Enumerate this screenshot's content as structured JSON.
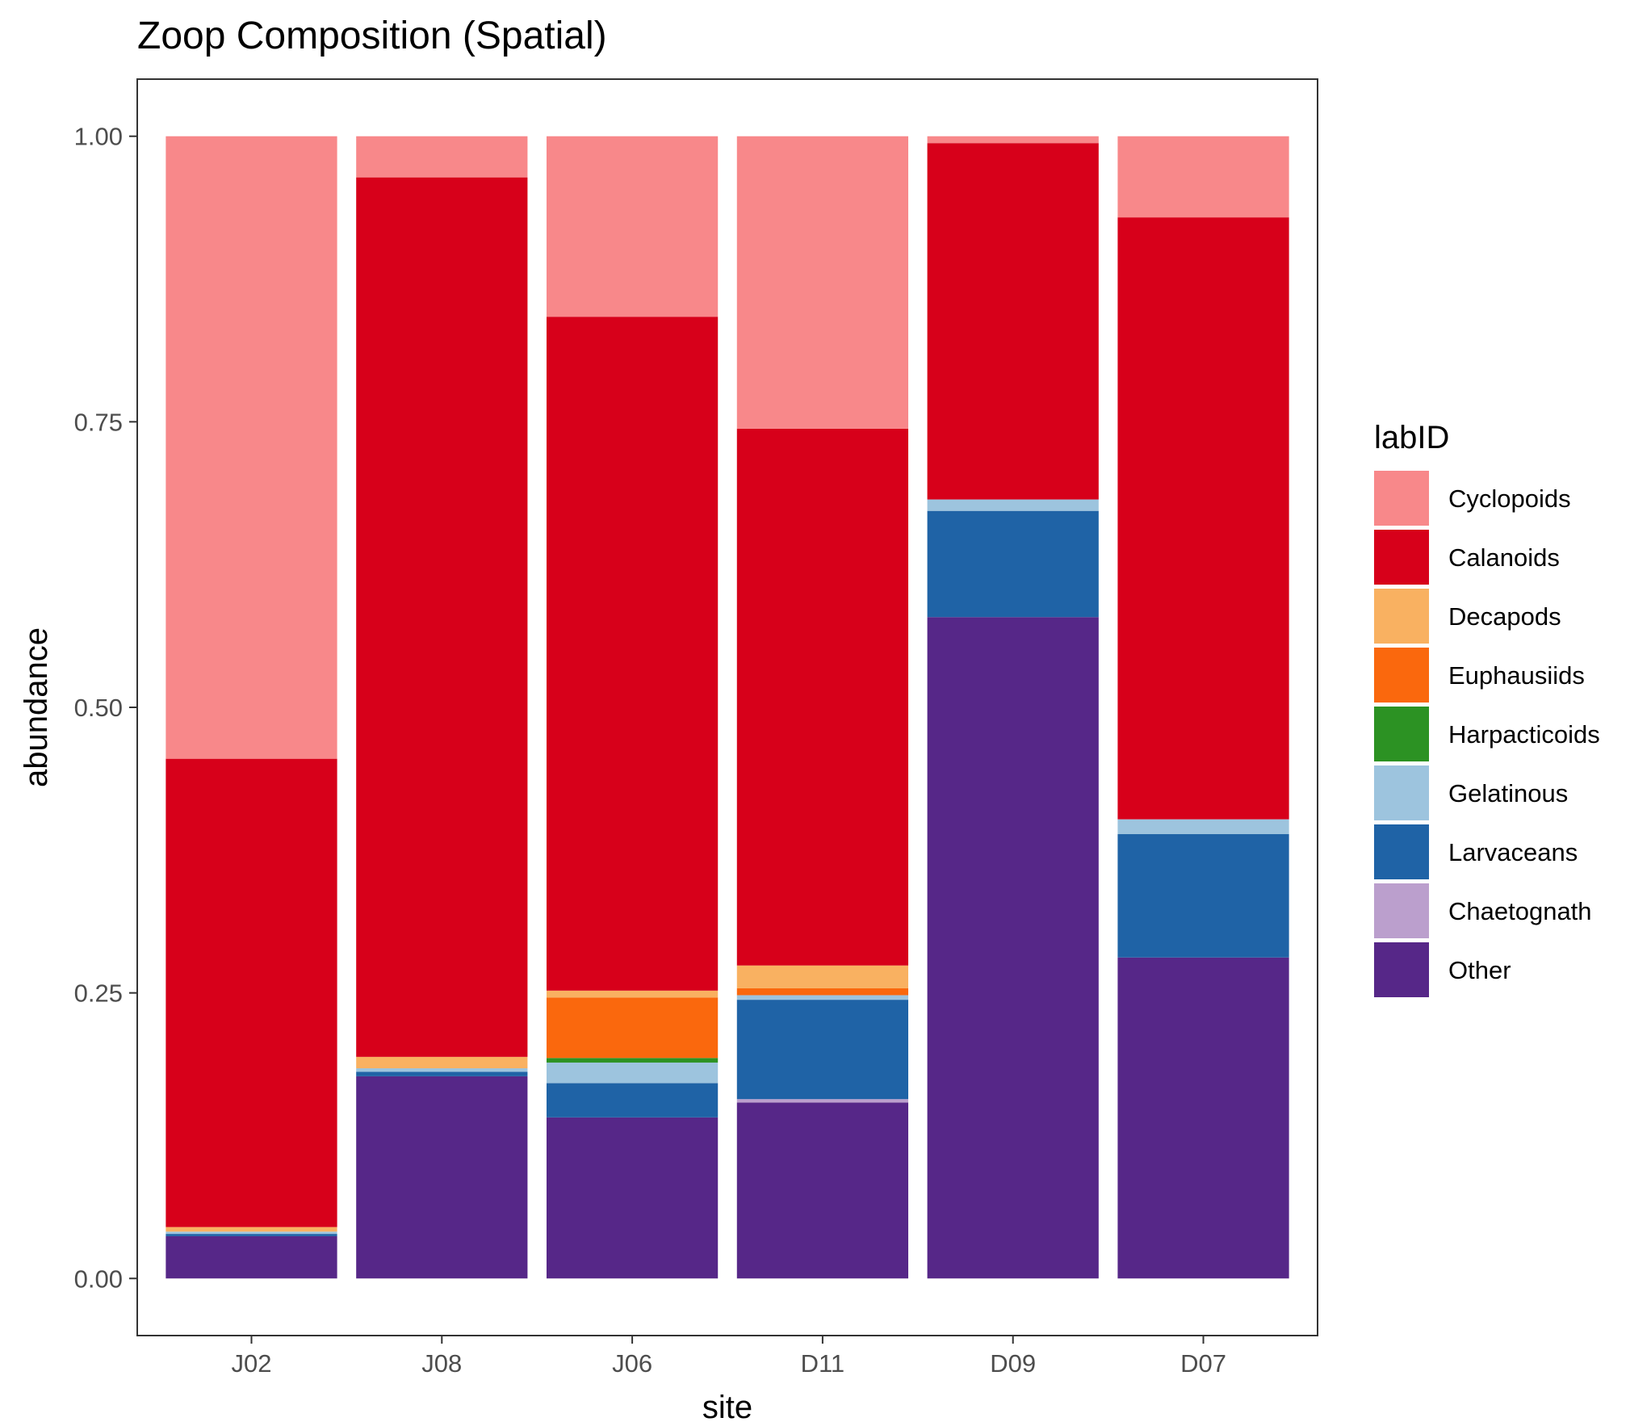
{
  "chart_data": {
    "type": "bar",
    "stacked": true,
    "title": "Zoop Composition (Spatial)",
    "xlabel": "site",
    "ylabel": "abundance",
    "ylim": [
      -0.05,
      1.05
    ],
    "yticks": [
      0.0,
      0.25,
      0.5,
      0.75,
      1.0
    ],
    "ytick_labels": [
      "0.00",
      "0.25",
      "0.50",
      "0.75",
      "1.00"
    ],
    "categories": [
      "J02",
      "J08",
      "J06",
      "D11",
      "D09",
      "D07"
    ],
    "legend_title": "labID",
    "legend_position": "right",
    "grid": false,
    "stack_order_bottom_to_top": [
      "Other",
      "Chaetognath",
      "Larvaceans",
      "Gelatinous",
      "Harpacticoids",
      "Euphausiids",
      "Decapods",
      "Calanoids",
      "Cyclopoids"
    ],
    "series": [
      {
        "name": "Cyclopoids",
        "color": "#F8888A",
        "values": [
          0.545,
          0.036,
          0.158,
          0.256,
          0.006,
          0.071
        ]
      },
      {
        "name": "Calanoids",
        "color": "#D7001A",
        "values": [
          0.41,
          0.77,
          0.59,
          0.47,
          0.312,
          0.527
        ]
      },
      {
        "name": "Decapods",
        "color": "#F9B161",
        "values": [
          0.004,
          0.01,
          0.006,
          0.02,
          0.0,
          0.0
        ]
      },
      {
        "name": "Euphausiids",
        "color": "#FA680D",
        "values": [
          0.0,
          0.0,
          0.053,
          0.006,
          0.0,
          0.0
        ]
      },
      {
        "name": "Harpacticoids",
        "color": "#2C9223",
        "values": [
          0.0,
          0.0,
          0.004,
          0.0,
          0.0,
          0.0
        ]
      },
      {
        "name": "Gelatinous",
        "color": "#9DC4DE",
        "values": [
          0.002,
          0.003,
          0.018,
          0.004,
          0.01,
          0.013
        ]
      },
      {
        "name": "Larvaceans",
        "color": "#1F63A6",
        "values": [
          0.002,
          0.004,
          0.03,
          0.087,
          0.093,
          0.108
        ]
      },
      {
        "name": "Chaetognath",
        "color": "#BB9FCD",
        "values": [
          0.0,
          0.0,
          0.0,
          0.003,
          0.0,
          0.0
        ]
      },
      {
        "name": "Other",
        "color": "#562788",
        "values": [
          0.037,
          0.177,
          0.141,
          0.154,
          0.579,
          0.281
        ]
      }
    ]
  }
}
